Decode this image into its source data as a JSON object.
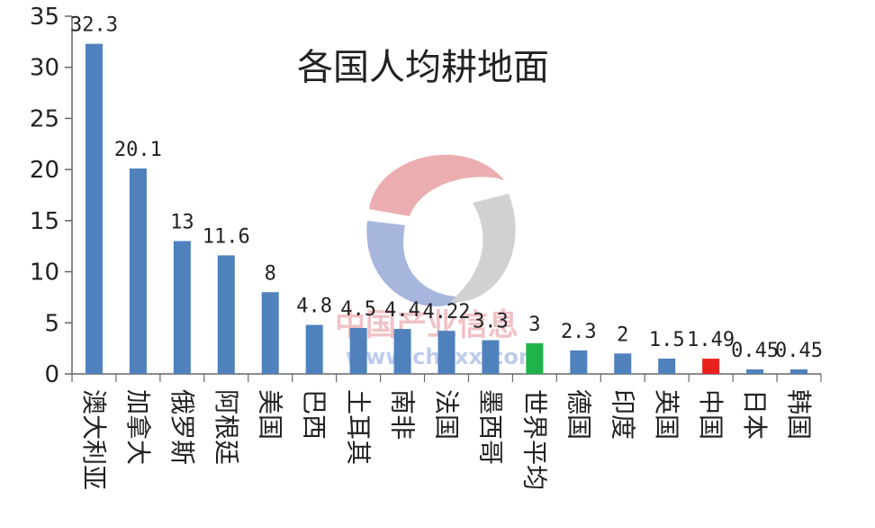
{
  "chart_data": {
    "type": "bar",
    "title": "各国人均耕地面",
    "xlabel": "",
    "ylabel": "",
    "ylim": [
      0,
      35
    ],
    "yticks": [
      0,
      5,
      10,
      15,
      20,
      25,
      30,
      35
    ],
    "categories": [
      "澳大利亚",
      "加拿大",
      "俄罗斯",
      "阿根廷",
      "美国",
      "巴西",
      "土耳其",
      "南非",
      "法国",
      "墨西哥",
      "世界平均",
      "德国",
      "印度",
      "英国",
      "中国",
      "日本",
      "韩国"
    ],
    "values": [
      32.3,
      20.1,
      13,
      11.6,
      8,
      4.8,
      4.5,
      4.4,
      4.22,
      3.3,
      3,
      2.3,
      2,
      1.5,
      1.49,
      0.45,
      0.45
    ],
    "data_labels": [
      "32.3",
      "20.1",
      "13",
      "11.6",
      "8",
      "4.8",
      "4.5",
      "4.4",
      "4.22",
      "3.3",
      "3",
      "2.3",
      "2",
      "1.5",
      "1.49",
      "0.45",
      "0.45"
    ],
    "colors": {
      "default": "#4f81bd",
      "世界平均": "#1fb34a",
      "中国": "#e8201e"
    },
    "grid": false,
    "legend": "none"
  },
  "watermark": {
    "text": "中国产业信息",
    "url": "www.chyxx.com"
  }
}
